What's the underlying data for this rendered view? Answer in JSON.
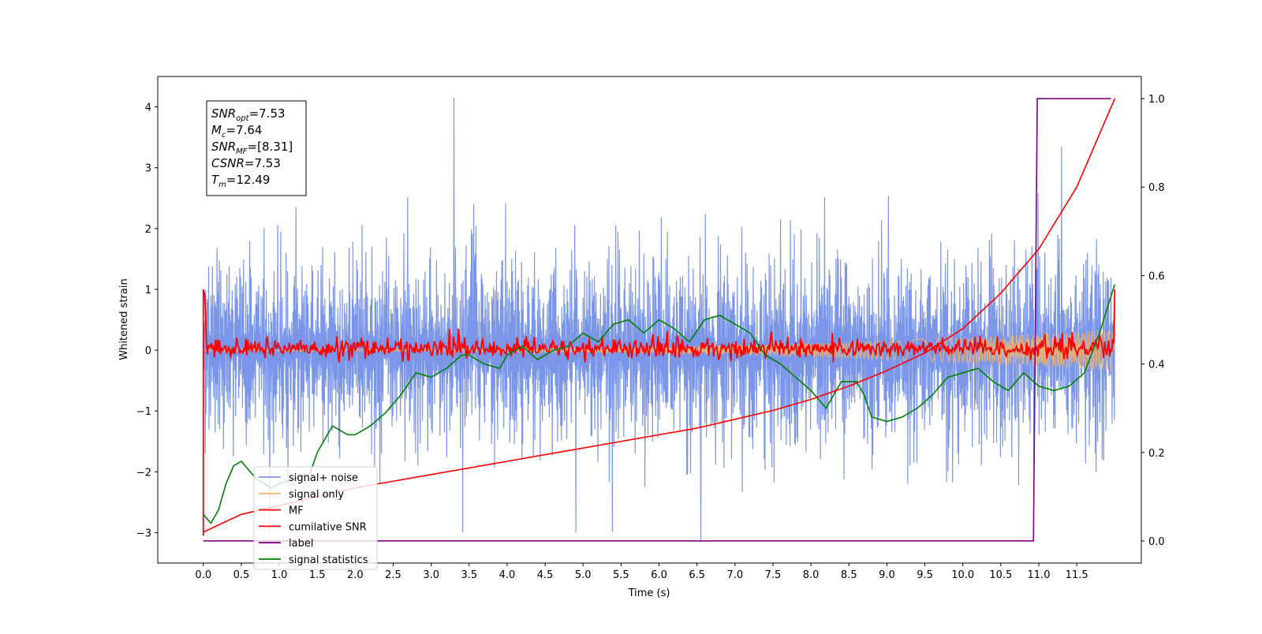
{
  "chart_data": {
    "type": "line",
    "title": "",
    "xlabel": "Time (s)",
    "ylabel": "Whitened strain",
    "xlim": [
      -0.6,
      12.35
    ],
    "ylim": [
      -3.5,
      4.5
    ],
    "y2lim": [
      -0.05,
      1.05
    ],
    "x_ticks": [
      0.0,
      0.5,
      1.0,
      1.5,
      2.0,
      2.5,
      3.0,
      3.5,
      4.0,
      4.5,
      5.0,
      5.5,
      6.0,
      6.5,
      7.0,
      7.5,
      8.0,
      8.5,
      9.0,
      9.5,
      10.0,
      10.5,
      11.0,
      11.5
    ],
    "x_tick_labels": [
      "0.0",
      "0.5",
      "1.0",
      "1.5",
      "2.0",
      "2.5",
      "3.0",
      "3.5",
      "4.0",
      "4.5",
      "5.0",
      "5.5",
      "6.0",
      "6.5",
      "7.0",
      "7.5",
      "8.0",
      "8.5",
      "9.0",
      "9.5",
      "10.0",
      "10.5",
      "11.0",
      "11.5"
    ],
    "y_ticks": [
      -3,
      -2,
      -1,
      0,
      1,
      2,
      3,
      4
    ],
    "y_tick_labels": [
      "−3",
      "−2",
      "−1",
      "0",
      "1",
      "2",
      "3",
      "4"
    ],
    "y2_ticks": [
      0.0,
      0.2,
      0.4,
      0.6,
      0.8,
      1.0
    ],
    "y2_tick_labels": [
      "0.0",
      "0.2",
      "0.4",
      "0.6",
      "0.8",
      "1.0"
    ],
    "grid": false,
    "legend_position": "lower-left",
    "series": [
      {
        "name": "signal+ noise",
        "color": "#7b96e8",
        "axis": "left",
        "x_range": [
          0.0,
          12.0
        ],
        "amplitude_band": [
          -2.1,
          2.3
        ],
        "extremes": [
          [
            3.3,
            4.15
          ],
          [
            6.55,
            -3.15
          ],
          [
            11.3,
            3.35
          ]
        ]
      },
      {
        "name": "signal only",
        "color": "#f5b56a",
        "axis": "left",
        "x_range": [
          0.0,
          12.0
        ],
        "envelope_start": 0.02,
        "envelope_end": 0.35
      },
      {
        "name": "MF",
        "color": "#ff0000",
        "axis": "left",
        "x_range": [
          0.0,
          12.0
        ],
        "start": 1.0,
        "typical_range": [
          -0.15,
          0.2
        ],
        "end": 1.0
      },
      {
        "name": "cumilative SNR",
        "color": "#ff0000",
        "axis": "right",
        "x": [
          0.0,
          0.5,
          1.0,
          1.5,
          2.0,
          2.5,
          3.0,
          3.5,
          4.0,
          4.5,
          5.0,
          5.5,
          6.0,
          6.5,
          7.0,
          7.5,
          8.0,
          8.5,
          9.0,
          9.5,
          10.0,
          10.5,
          11.0,
          11.5,
          12.0
        ],
        "values": [
          0.02,
          0.06,
          0.08,
          0.1,
          0.12,
          0.135,
          0.15,
          0.165,
          0.18,
          0.195,
          0.21,
          0.225,
          0.24,
          0.255,
          0.275,
          0.295,
          0.32,
          0.35,
          0.385,
          0.425,
          0.48,
          0.56,
          0.66,
          0.8,
          1.0
        ]
      },
      {
        "name": "label",
        "color": "#800080",
        "axis": "right",
        "x": [
          0.0,
          10.93,
          10.98,
          11.95
        ],
        "values": [
          0.0,
          0.0,
          1.0,
          1.0
        ]
      },
      {
        "name": "signal statistics",
        "color": "#008000",
        "axis": "right",
        "x": [
          0.0,
          0.1,
          0.2,
          0.3,
          0.4,
          0.5,
          0.6,
          0.7,
          0.8,
          0.9,
          1.0,
          1.2,
          1.4,
          1.5,
          1.6,
          1.7,
          1.8,
          1.9,
          2.0,
          2.2,
          2.4,
          2.6,
          2.8,
          3.0,
          3.2,
          3.4,
          3.5,
          3.7,
          3.9,
          4.0,
          4.2,
          4.4,
          4.6,
          4.8,
          5.0,
          5.2,
          5.4,
          5.6,
          5.8,
          6.0,
          6.2,
          6.4,
          6.6,
          6.8,
          7.0,
          7.2,
          7.4,
          7.6,
          7.8,
          8.0,
          8.2,
          8.4,
          8.6,
          8.7,
          8.8,
          9.0,
          9.2,
          9.4,
          9.6,
          9.8,
          10.0,
          10.2,
          10.4,
          10.6,
          10.8,
          11.0,
          11.2,
          11.4,
          11.6,
          11.8,
          12.0
        ],
        "values": [
          0.06,
          0.04,
          0.07,
          0.13,
          0.17,
          0.18,
          0.16,
          0.14,
          0.13,
          0.12,
          0.13,
          0.14,
          0.15,
          0.2,
          0.23,
          0.26,
          0.25,
          0.24,
          0.24,
          0.26,
          0.29,
          0.33,
          0.38,
          0.37,
          0.39,
          0.42,
          0.42,
          0.4,
          0.39,
          0.42,
          0.44,
          0.41,
          0.43,
          0.44,
          0.47,
          0.45,
          0.49,
          0.5,
          0.47,
          0.5,
          0.48,
          0.45,
          0.5,
          0.51,
          0.49,
          0.47,
          0.42,
          0.4,
          0.37,
          0.34,
          0.3,
          0.36,
          0.36,
          0.33,
          0.28,
          0.27,
          0.28,
          0.3,
          0.33,
          0.37,
          0.38,
          0.39,
          0.36,
          0.34,
          0.38,
          0.35,
          0.34,
          0.35,
          0.38,
          0.47,
          0.58
        ]
      }
    ],
    "info_box": {
      "position": "top-left",
      "lines": [
        {
          "main": "SNR",
          "sub": "opt",
          "value": "=7.53"
        },
        {
          "main": "M",
          "sub": "c",
          "value": "=7.64"
        },
        {
          "main": "SNR",
          "sub": "MF",
          "value": "=[8.31]"
        },
        {
          "main": "CSNR",
          "sub": "",
          "value": "=7.53"
        },
        {
          "main": "T",
          "sub": "m",
          "value": "=12.49"
        }
      ]
    }
  }
}
